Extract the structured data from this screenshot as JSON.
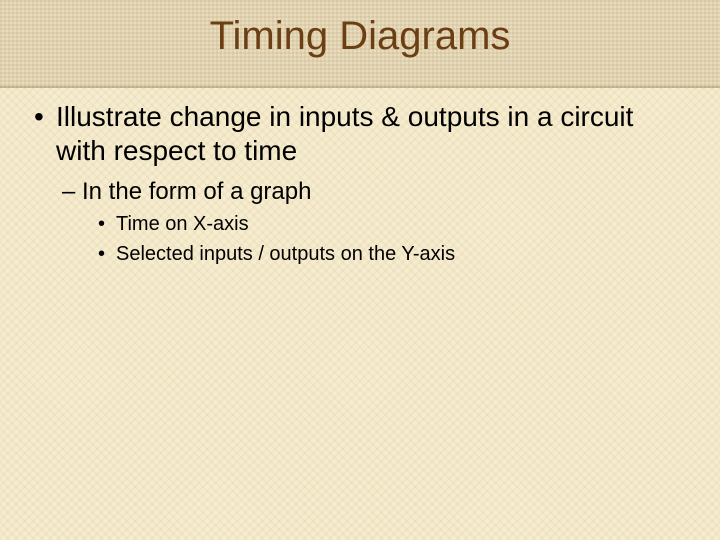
{
  "slide": {
    "title": "Timing Diagrams",
    "title_color": "#6b3e14",
    "title_fontsize": 40,
    "background_color": "#f6eccf",
    "header_band_color": "#e9ddc0",
    "body_text_color": "#000000",
    "bullets": {
      "lvl1": {
        "text": "Illustrate change in inputs & outputs in a circuit with respect to time",
        "fontsize": 28,
        "marker": "•"
      },
      "lvl2": {
        "text": "In the form of a graph",
        "fontsize": 24,
        "marker": "–"
      },
      "lvl3a": {
        "text": "Time on X-axis",
        "fontsize": 20,
        "marker": "•"
      },
      "lvl3b": {
        "text": "Selected inputs / outputs on the Y-axis",
        "fontsize": 20,
        "marker": "•"
      }
    }
  }
}
